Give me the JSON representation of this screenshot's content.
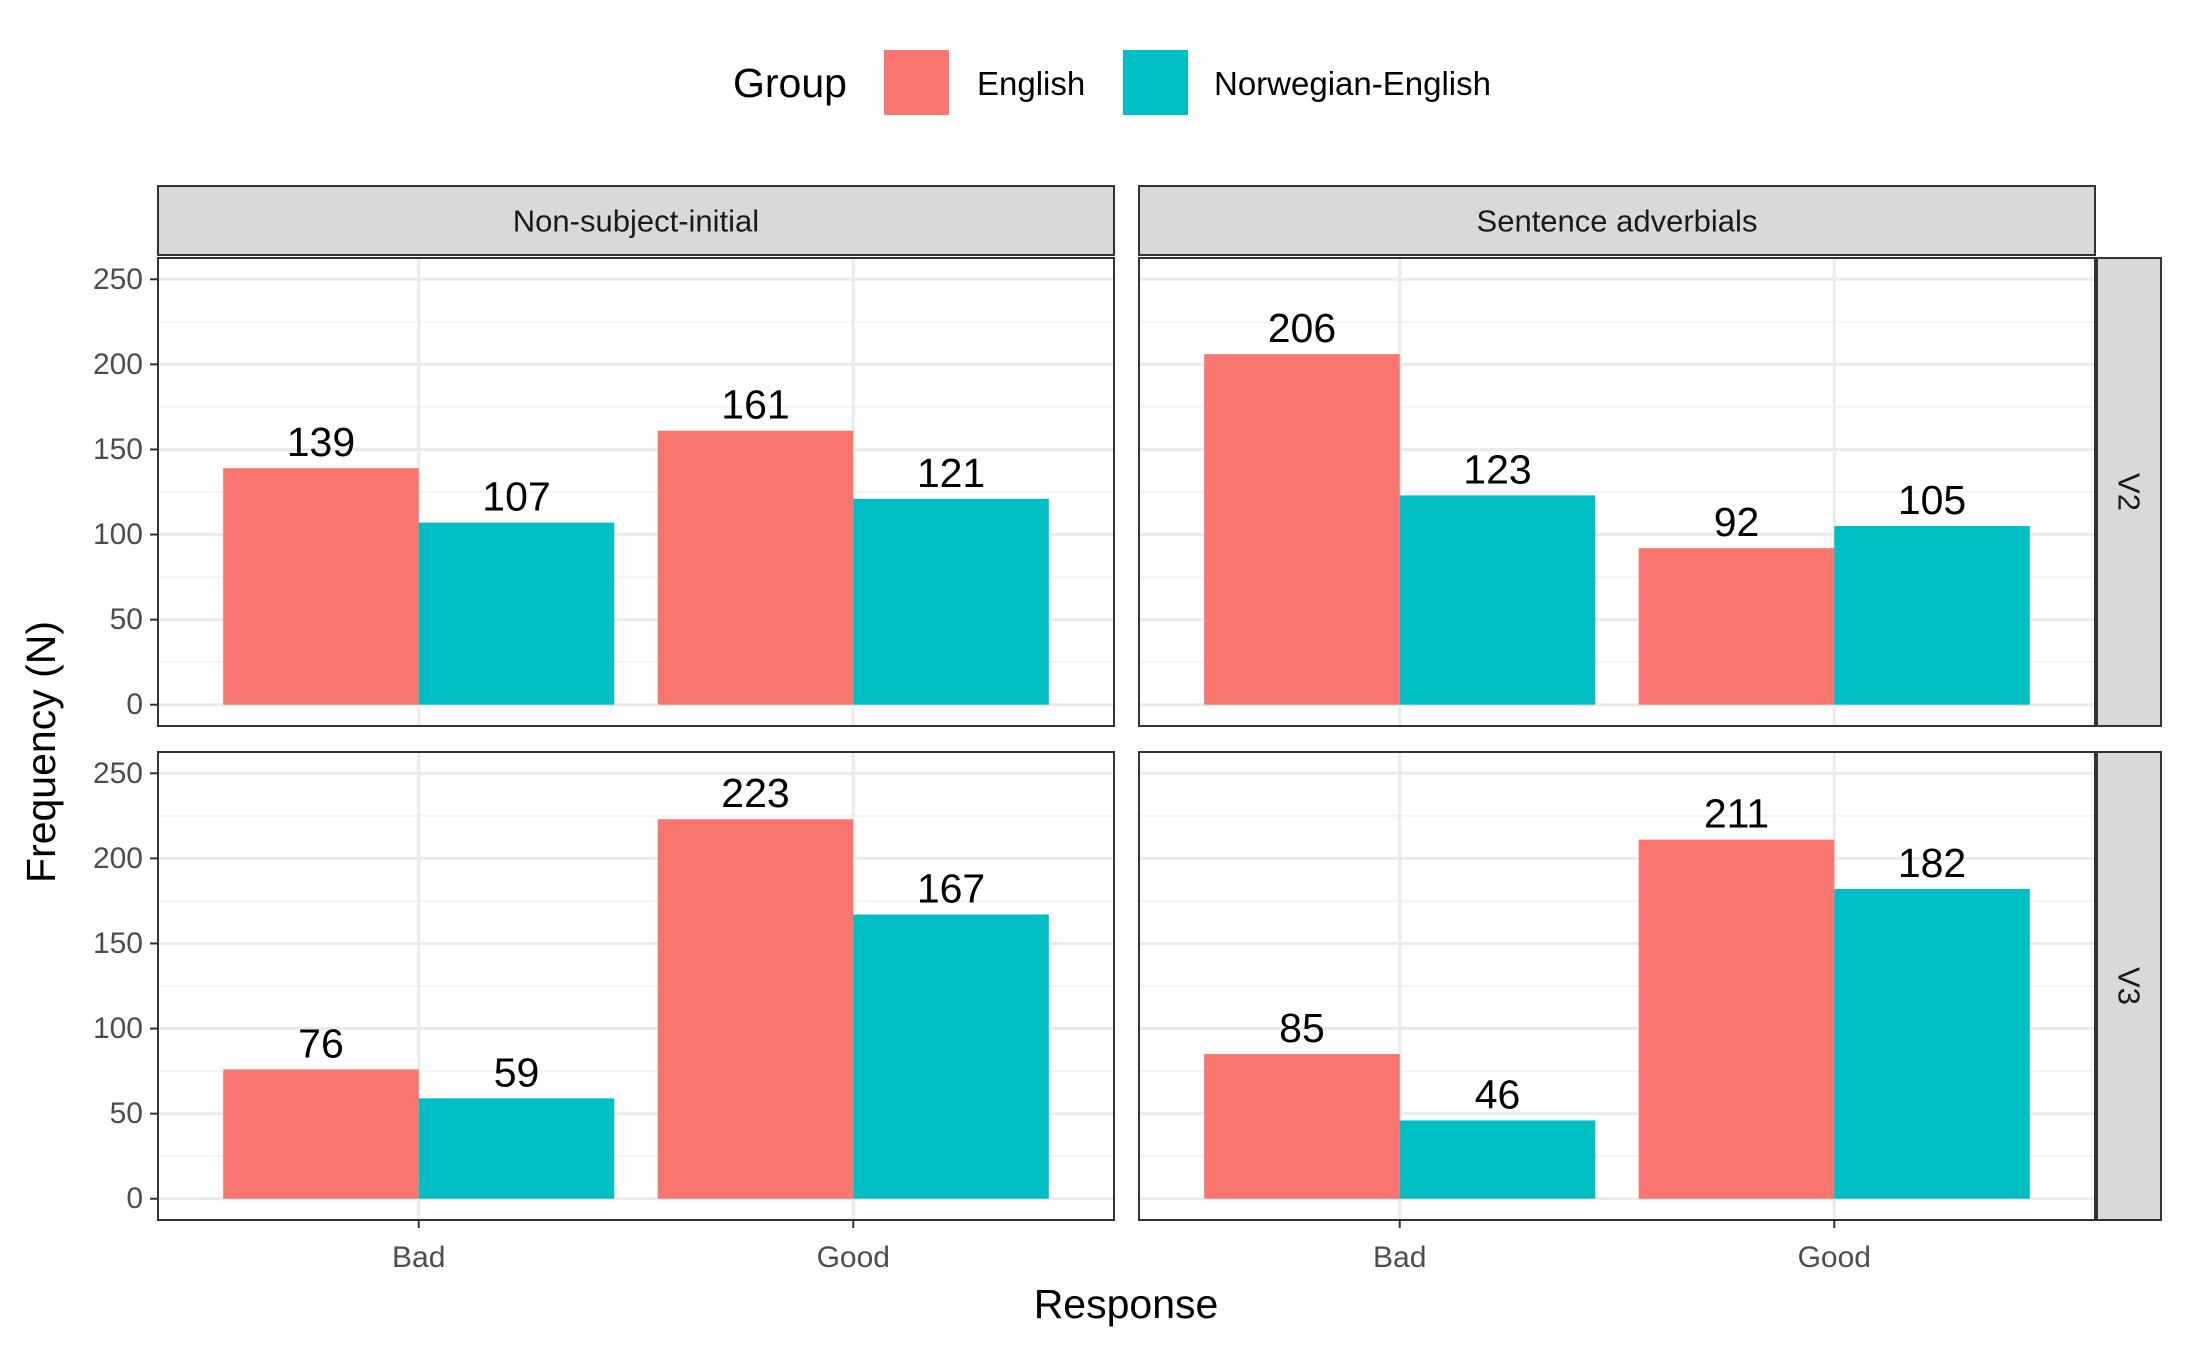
{
  "legend": {
    "title": "Group",
    "entries": [
      {
        "label": "English",
        "color": "#F8766D"
      },
      {
        "label": "Norwegian-English",
        "color": "#00BFC4"
      }
    ]
  },
  "chart_data": {
    "type": "bar",
    "layout": "facet_grid",
    "xlabel": "Response",
    "ylabel": "Frequency (N)",
    "ylim": [
      0,
      250
    ],
    "y_ticks": [
      0,
      50,
      100,
      150,
      200,
      250
    ],
    "categories": [
      "Bad",
      "Good"
    ],
    "series_names": [
      "English",
      "Norwegian-English"
    ],
    "colors": [
      "#F8766D",
      "#00BFC4"
    ],
    "column_facets": [
      "Non-subject-initial",
      "Sentence adverbials"
    ],
    "row_facets": [
      "V2",
      "V3"
    ],
    "grid": true,
    "legend_position": "top",
    "panels": [
      {
        "col": "Non-subject-initial",
        "row": "V2",
        "series": [
          {
            "name": "English",
            "values": [
              139,
              161
            ]
          },
          {
            "name": "Norwegian-English",
            "values": [
              107,
              121
            ]
          }
        ]
      },
      {
        "col": "Sentence adverbials",
        "row": "V2",
        "series": [
          {
            "name": "English",
            "values": [
              206,
              92
            ]
          },
          {
            "name": "Norwegian-English",
            "values": [
              123,
              105
            ]
          }
        ]
      },
      {
        "col": "Non-subject-initial",
        "row": "V3",
        "series": [
          {
            "name": "English",
            "values": [
              76,
              223
            ]
          },
          {
            "name": "Norwegian-English",
            "values": [
              59,
              167
            ]
          }
        ]
      },
      {
        "col": "Sentence adverbials",
        "row": "V3",
        "series": [
          {
            "name": "English",
            "values": [
              85,
              211
            ]
          },
          {
            "name": "Norwegian-English",
            "values": [
              46,
              182
            ]
          }
        ]
      }
    ]
  }
}
